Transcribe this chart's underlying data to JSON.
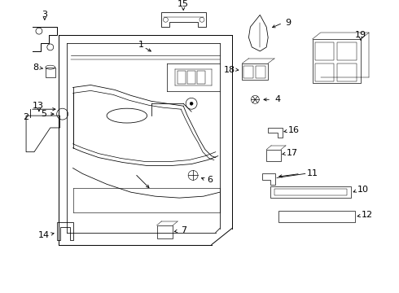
{
  "background_color": "#ffffff",
  "lw": 0.7,
  "fig_w": 4.9,
  "fig_h": 3.6,
  "dpi": 100
}
